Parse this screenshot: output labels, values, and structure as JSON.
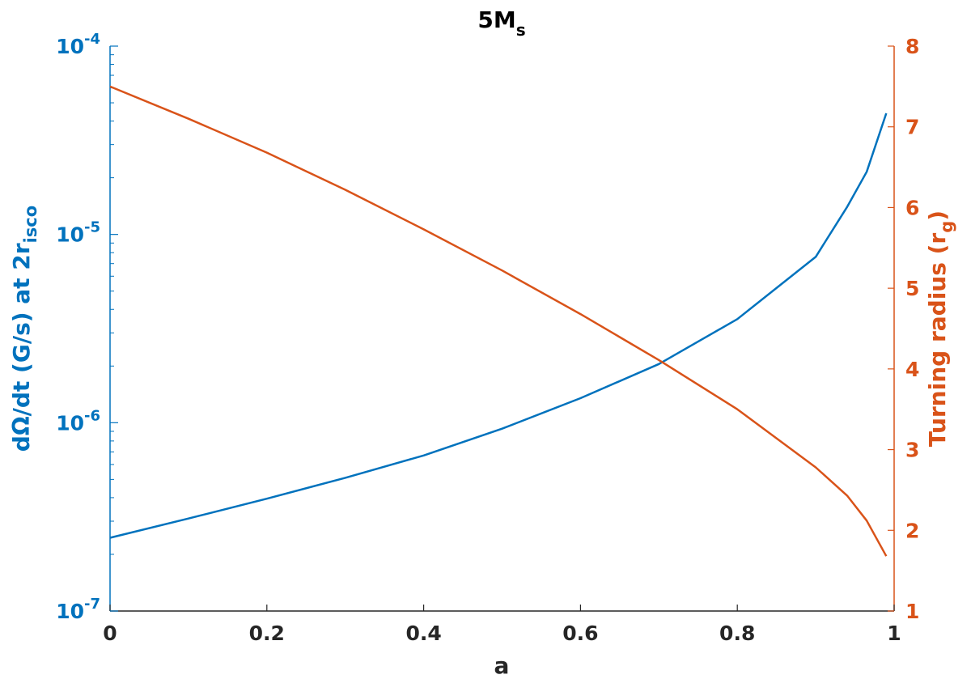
{
  "chart_data": {
    "type": "line",
    "title": {
      "base": "5M",
      "sub": "s"
    },
    "xlabel": "a",
    "ylabel_left": {
      "base": "dΩ/dt (G/s) at 2r",
      "sub": "isco"
    },
    "ylabel_right": {
      "base": "Turning radius (r",
      "sub": "g",
      "close": ")"
    },
    "xlim": [
      0,
      1
    ],
    "ylim_left": [
      1e-07,
      0.0001
    ],
    "yscale_left": "log",
    "ylim_right": [
      1,
      8
    ],
    "grid": false,
    "x_ticks": [
      "0",
      "0.2",
      "0.4",
      "0.6",
      "0.8",
      "1"
    ],
    "x_tick_values": [
      0,
      0.2,
      0.4,
      0.6,
      0.8,
      1
    ],
    "left_ticks": [
      {
        "value": 1e-07,
        "base": "10",
        "exp": "-7"
      },
      {
        "value": 1e-06,
        "base": "10",
        "exp": "-6"
      },
      {
        "value": 1e-05,
        "base": "10",
        "exp": "-5"
      },
      {
        "value": 0.0001,
        "base": "10",
        "exp": "-4"
      }
    ],
    "right_ticks": [
      "1",
      "2",
      "3",
      "4",
      "5",
      "6",
      "7",
      "8"
    ],
    "right_tick_values": [
      1,
      2,
      3,
      4,
      5,
      6,
      7,
      8
    ],
    "colors": {
      "left": "#0072BD",
      "right": "#D95319",
      "axis": "#262626"
    },
    "series": [
      {
        "axis": "left",
        "color": "#0072BD",
        "x": [
          0,
          0.1,
          0.2,
          0.3,
          0.4,
          0.5,
          0.6,
          0.7,
          0.8,
          0.9,
          0.94,
          0.965,
          0.99
        ],
        "y": [
          2.45e-07,
          3.1e-07,
          3.95e-07,
          5.1e-07,
          6.7e-07,
          9.3e-07,
          1.35e-06,
          2.05e-06,
          3.55e-06,
          7.6e-06,
          1.4e-05,
          2.15e-05,
          4.4e-05
        ]
      },
      {
        "axis": "right",
        "color": "#D95319",
        "x": [
          0,
          0.1,
          0.2,
          0.3,
          0.4,
          0.5,
          0.6,
          0.7,
          0.8,
          0.9,
          0.94,
          0.965,
          0.99
        ],
        "y": [
          7.5,
          7.1,
          6.68,
          6.22,
          5.73,
          5.22,
          4.68,
          4.11,
          3.5,
          2.78,
          2.43,
          2.12,
          1.68
        ]
      }
    ]
  }
}
